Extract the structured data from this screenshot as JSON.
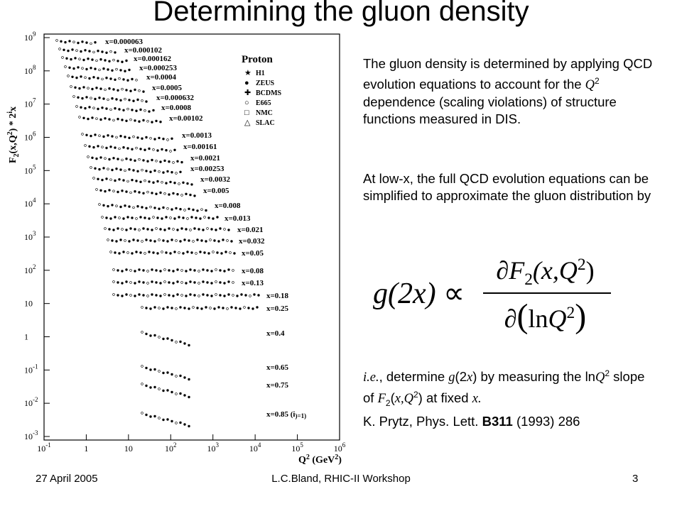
{
  "title": "Determining the gluon density",
  "figure": {
    "y_axis_label": [
      "F",
      "2",
      "(x,Q",
      "2",
      ") * 2",
      "i",
      "x"
    ],
    "x_axis_label": [
      "Q",
      "2",
      " (GeV",
      "2",
      ")"
    ],
    "yticks": [
      [
        "10",
        "9"
      ],
      [
        "10",
        "8"
      ],
      [
        "10",
        "7"
      ],
      [
        "10",
        "6"
      ],
      [
        "10",
        "5"
      ],
      [
        "10",
        "4"
      ],
      [
        "10",
        "3"
      ],
      [
        "10",
        "2"
      ],
      [
        "10"
      ],
      [
        "1"
      ],
      [
        "10",
        "-1"
      ],
      [
        "10",
        "-2"
      ],
      [
        "10",
        "-3"
      ]
    ],
    "xticks": [
      [
        "10",
        "-1"
      ],
      [
        "1"
      ],
      [
        "10"
      ],
      [
        "10",
        "2"
      ],
      [
        "10",
        "3"
      ],
      [
        "10",
        "4"
      ],
      [
        "10",
        "5"
      ],
      [
        "10",
        "6"
      ]
    ],
    "legend": {
      "title": "Proton",
      "entries": [
        "H1",
        "ZEUS",
        "BCDMS",
        "E665",
        "NMC",
        "SLAC"
      ]
    },
    "series_labels": [
      "x=0.000063",
      "x=0.000102",
      "x=0.000162",
      "x=0.000253",
      "x=0.0004",
      "x=0.0005",
      "x=0.000632",
      "x=0.0008",
      "x=0.00102",
      "x=0.0013",
      "x=0.00161",
      "x=0.0021",
      "x=0.00253",
      "x=0.0032",
      "x=0.005",
      "x=0.008",
      "x=0.013",
      "x=0.021",
      "x=0.032",
      "x=0.05",
      "x=0.08",
      "x=0.13",
      "x=0.18",
      "x=0.25",
      "x=0.4",
      "x=0.65",
      "x=0.75",
      "x=0.85 (i",
      ")=1)"
    ]
  },
  "text": {
    "p1": [
      "The gluon density is determined by applying QCD evolution equations to account for the ",
      "Q",
      "2",
      " dependence (scaling violations) of structure functions measured in DIS."
    ],
    "p2": "At low-x, the full QCD evolution equations can be simplified to approximate the gluon distribution by",
    "p3": [
      "i.e.",
      ", determine ",
      "g",
      "(2",
      "x",
      ") by measuring the ln",
      "Q",
      "2",
      " slope of ",
      "F",
      "2",
      "(",
      "x,Q",
      "2",
      ") at fixed ",
      "x."
    ],
    "p4": [
      "K. Prytz, Phys. Lett. ",
      "B311",
      " (1993) 286"
    ]
  },
  "formula": {
    "lhs": "g(2x)",
    "prop": "∝",
    "num": [
      "∂",
      "F",
      "2",
      "(x,Q",
      "2",
      ")"
    ],
    "den": [
      "∂",
      "(",
      "ln",
      "Q",
      "2",
      ")"
    ]
  },
  "footer": {
    "date": "27 April 2005",
    "center": "L.C.Bland, RHIC-II Workshop",
    "page": "3"
  }
}
